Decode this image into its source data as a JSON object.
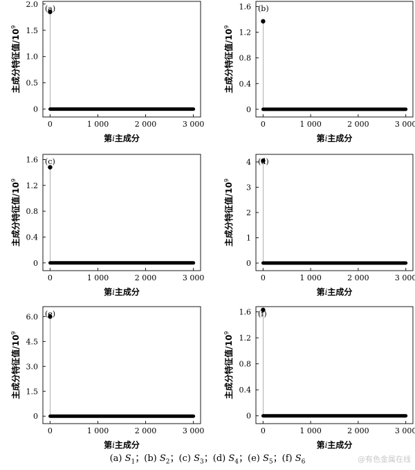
{
  "chart_data": [
    {
      "type": "scatter",
      "panel_label": "(a)",
      "ylabel": "主成分特征值/10",
      "ylabel_sup": "9",
      "xlabel": "第i主成分",
      "x_ticks": [
        "0",
        "1 000",
        "2 000",
        "3 000"
      ],
      "y_ticks": [
        "0",
        "0.5",
        "1.0",
        "1.5",
        "2.0"
      ],
      "xlim": [
        -150,
        3150
      ],
      "ylim": [
        -0.15,
        2.05
      ],
      "series": [
        {
          "x": [
            1
          ],
          "y": [
            1.85
          ]
        }
      ],
      "tail": {
        "x_from": 2,
        "x_to": 3000,
        "y": 0.0
      }
    },
    {
      "type": "scatter",
      "panel_label": "(b)",
      "ylabel": "主成分特征值/10",
      "ylabel_sup": "9",
      "xlabel": "第i主成分",
      "x_ticks": [
        "0",
        "1 000",
        "2 000",
        "3 000"
      ],
      "y_ticks": [
        "0",
        "0.4",
        "0.8",
        "1.2",
        "1.6"
      ],
      "xlim": [
        -150,
        3150
      ],
      "ylim": [
        -0.12,
        1.68
      ],
      "series": [
        {
          "x": [
            1
          ],
          "y": [
            1.37
          ]
        }
      ],
      "tail": {
        "x_from": 2,
        "x_to": 3000,
        "y": 0.0
      }
    },
    {
      "type": "scatter",
      "panel_label": "(c)",
      "ylabel": "主成分特征值/10",
      "ylabel_sup": "9",
      "xlabel": "第i主成分",
      "x_ticks": [
        "0",
        "1 000",
        "2 000",
        "3 000"
      ],
      "y_ticks": [
        "0",
        "0.4",
        "0.8",
        "1.2",
        "1.6"
      ],
      "xlim": [
        -150,
        3150
      ],
      "ylim": [
        -0.12,
        1.68
      ],
      "series": [
        {
          "x": [
            1
          ],
          "y": [
            1.48
          ]
        }
      ],
      "tail": {
        "x_from": 2,
        "x_to": 3000,
        "y": 0.0
      }
    },
    {
      "type": "scatter",
      "panel_label": "(d)",
      "ylabel": "主成分特征值/10",
      "ylabel_sup": "9",
      "xlabel": "第i主成分",
      "x_ticks": [
        "0",
        "1 000",
        "2 000",
        "3 000"
      ],
      "y_ticks": [
        "0",
        "1",
        "2",
        "3",
        "4"
      ],
      "xlim": [
        -150,
        3150
      ],
      "ylim": [
        -0.3,
        4.3
      ],
      "series": [
        {
          "x": [
            1
          ],
          "y": [
            4.05
          ]
        }
      ],
      "tail": {
        "x_from": 2,
        "x_to": 3000,
        "y": 0.0
      }
    },
    {
      "type": "scatter",
      "panel_label": "(e)",
      "ylabel": "主成分特征值/10",
      "ylabel_sup": "9",
      "xlabel": "第i主成分",
      "x_ticks": [
        "0",
        "1 000",
        "2 000",
        "3 000"
      ],
      "y_ticks": [
        "0",
        "1.5",
        "3.0",
        "4.5",
        "6.0"
      ],
      "xlim": [
        -150,
        3150
      ],
      "ylim": [
        -0.45,
        6.6
      ],
      "series": [
        {
          "x": [
            1
          ],
          "y": [
            6.0
          ]
        }
      ],
      "tail": {
        "x_from": 2,
        "x_to": 3000,
        "y": 0.0
      }
    },
    {
      "type": "scatter",
      "panel_label": "(f)",
      "ylabel": "主成分特征值/10",
      "ylabel_sup": "9",
      "xlabel": "第i主成分",
      "x_ticks": [
        "0",
        "1 000",
        "2 000",
        "3 000"
      ],
      "y_ticks": [
        "0",
        "0.4",
        "0.8",
        "1.2",
        "1.6"
      ],
      "xlim": [
        -150,
        3150
      ],
      "ylim": [
        -0.12,
        1.68
      ],
      "series": [
        {
          "x": [
            1
          ],
          "y": [
            1.63
          ]
        }
      ],
      "tail": {
        "x_from": 2,
        "x_to": 3000,
        "y": 0.0
      }
    }
  ],
  "caption": {
    "items": [
      {
        "label": "(a)",
        "var": "S",
        "sub": "1",
        "sep": "；"
      },
      {
        "label": "(b)",
        "var": "S",
        "sub": "2",
        "sep": "；"
      },
      {
        "label": "(c)",
        "var": "S",
        "sub": "3",
        "sep": "；"
      },
      {
        "label": "(d)",
        "var": "S",
        "sub": "4",
        "sep": "；"
      },
      {
        "label": "(e)",
        "var": "S",
        "sub": "5",
        "sep": "；"
      },
      {
        "label": "(f)",
        "var": "S",
        "sub": "6",
        "sep": ""
      }
    ]
  },
  "watermark": "@有色金属在线"
}
